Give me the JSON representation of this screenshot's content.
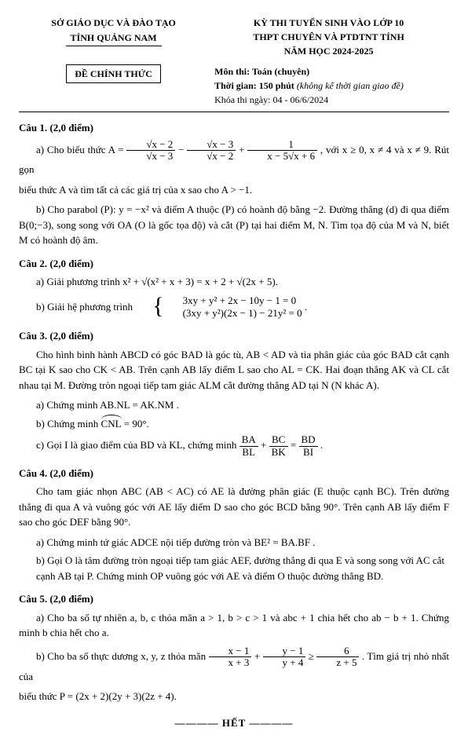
{
  "header": {
    "org_line1": "SỞ GIÁO DỤC VÀ ĐÀO TẠO",
    "org_line2": "TỈNH QUẢNG NAM",
    "exam_line1": "KỲ THI TUYỂN SINH VÀO LỚP 10",
    "exam_line2": "THPT CHUYÊN VÀ PTDTNT TỈNH",
    "exam_line3": "NĂM HỌC 2024-2025",
    "stamp": "ĐỀ CHÍNH THỨC",
    "subject": "Môn thi: Toán (chuyên)",
    "duration_label": "Thời gian: 150 phút",
    "duration_note": "(không kể thời gian giao đề)",
    "date": "Khóa thi ngày: 04 - 06/6/2024"
  },
  "q1": {
    "title": "Câu 1. (2,0 điểm)",
    "a_pre": "a) Cho biểu thức  A =",
    "a_f1_num": "√x − 2",
    "a_f1_den": "√x − 3",
    "minus": "−",
    "a_f2_num": "√x − 3",
    "a_f2_den": "√x − 2",
    "plus": "+",
    "a_f3_num": "1",
    "a_f3_den": "x − 5√x + 6",
    "a_post": ", với x ≥ 0, x ≠ 4 và x ≠ 9. Rút gọn",
    "a_line2": "biểu thức A và tìm tất cả các giá trị của x sao cho A > −1.",
    "b": "b) Cho parabol (P): y = −x² và điểm A thuộc (P) có hoành độ bằng −2. Đường thẳng (d) đi qua điểm B(0;−3), song song với OA (O là gốc tọa độ) và cắt (P) tại hai điểm M, N. Tìm tọa độ của M và N, biết M có hoành độ âm."
  },
  "q2": {
    "title": "Câu 2. (2,0 điểm)",
    "a_pre": "a) Giải phương trình  x² + ",
    "a_sqrt": "√(x² + x + 3)",
    "a_mid": " = x + 2 + ",
    "a_sqrt2": "√(2x + 5)",
    "a_end": ".",
    "b_pre": "b) Giải hệ phương trình ",
    "b_eq1": "3xy + y² + 2x − 10y − 1 = 0",
    "b_eq2": "(3xy + y²)(2x − 1) − 21y² = 0",
    "b_end": "."
  },
  "q3": {
    "title": "Câu 3. (2,0 điểm)",
    "intro": "Cho hình bình hành ABCD có góc BAD là góc tù, AB < AD và tia phân giác của góc BAD cắt cạnh BC tại K sao cho CK < AB. Trên cạnh AB lấy điểm L sao cho AL = CK. Hai đoạn thẳng AK và CL cắt nhau tại M. Đường tròn ngoại tiếp tam giác ALM cắt đường thẳng AD tại N (N khác A).",
    "a": "a) Chứng minh  AB.NL = AK.NM .",
    "b_pre": "b) Chứng minh  ",
    "b_arc": "CNL",
    "b_post": " = 90°.",
    "c_pre": "c) Gọi I là giao điểm của BD và KL, chứng minh ",
    "c_f1_num": "BA",
    "c_f1_den": "BL",
    "c_plus": " + ",
    "c_f2_num": "BC",
    "c_f2_den": "BK",
    "c_eq": " = ",
    "c_f3_num": "BD",
    "c_f3_den": "BI",
    "c_end": "."
  },
  "q4": {
    "title": "Câu 4. (2,0 điểm)",
    "intro": "Cho tam giác nhọn ABC (AB < AC) có AE là đường phân giác (E thuộc cạnh BC). Trên đường thẳng đi qua A và vuông góc với AE lấy điểm D sao cho góc BCD bằng 90°. Trên cạnh AB lấy điểm F sao cho góc DEF bằng 90°.",
    "a": "a) Chứng minh tứ giác ADCE nội tiếp đường tròn và  BE² = BA.BF .",
    "b": "b) Gọi O là tâm đường tròn ngoại tiếp tam giác AEF, đường thẳng đi qua E và song song với AC cắt cạnh AB tại P. Chứng minh OP vuông góc với AE và điểm O thuộc đường thẳng BD."
  },
  "q5": {
    "title": "Câu 5. (2,0 điểm)",
    "a": "a) Cho ba số tự nhiên a, b, c thỏa mãn a > 1, b > c > 1 và abc + 1 chia hết cho ab − b + 1. Chứng minh b chia hết cho a.",
    "b_pre": "b) Cho ba số thực dương x, y, z thỏa mãn ",
    "b_f1_num": "x − 1",
    "b_f1_den": "x + 3",
    "b_plus": " + ",
    "b_f2_num": "y − 1",
    "b_f2_den": "y + 4",
    "b_geq": " ≥ ",
    "b_f3_num": "6",
    "b_f3_den": "z + 5",
    "b_post": ". Tìm giá trị nhỏ nhất của",
    "b_line2": "biểu thức  P = (2x + 2)(2y + 3)(2z + 4)."
  },
  "footer": "———— HẾT ————"
}
